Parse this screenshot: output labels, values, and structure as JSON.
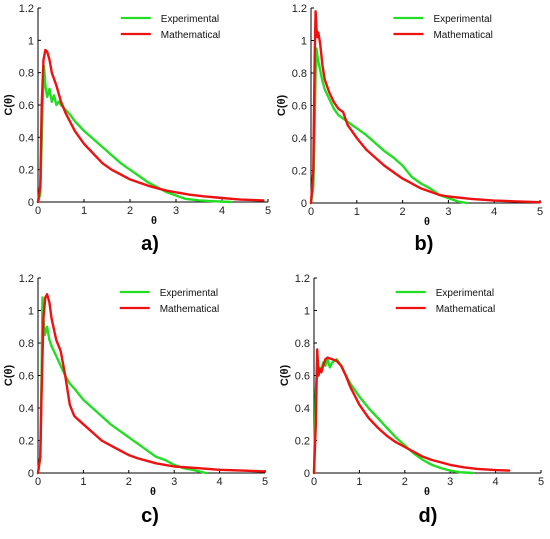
{
  "chart_data": [
    {
      "type": "line",
      "panel_label": "a)",
      "xlabel": "θ",
      "ylabel": "C(θ)",
      "xlim": [
        0,
        5
      ],
      "ylim": [
        0,
        1.2
      ],
      "xticks": [
        "0",
        "1",
        "2",
        "3",
        "4",
        "5"
      ],
      "yticks": [
        "0",
        "0.2",
        "0.4",
        "0.6",
        "0.8",
        "1",
        "1.2"
      ],
      "legend": "top-right",
      "series": [
        {
          "name": "Experimental",
          "color": "#22dd22",
          "x": [
            0,
            0.05,
            0.1,
            0.13,
            0.16,
            0.2,
            0.25,
            0.3,
            0.35,
            0.4,
            0.45,
            0.5,
            0.6,
            0.7,
            0.8,
            0.9,
            1.0,
            1.2,
            1.4,
            1.6,
            1.8,
            2.0,
            2.2,
            2.4,
            2.6,
            2.8,
            3.0,
            3.2,
            3.5,
            3.8,
            4.2
          ],
          "y": [
            0,
            0.05,
            0.6,
            0.84,
            0.72,
            0.65,
            0.7,
            0.62,
            0.66,
            0.6,
            0.62,
            0.6,
            0.57,
            0.54,
            0.5,
            0.47,
            0.44,
            0.39,
            0.34,
            0.29,
            0.24,
            0.2,
            0.16,
            0.12,
            0.09,
            0.06,
            0.04,
            0.02,
            0.01,
            0.005,
            0
          ]
        },
        {
          "name": "Mathematical",
          "color": "#ee1111",
          "x": [
            0,
            0.05,
            0.08,
            0.12,
            0.16,
            0.2,
            0.25,
            0.3,
            0.4,
            0.5,
            0.6,
            0.8,
            1.0,
            1.2,
            1.4,
            1.6,
            1.8,
            2.0,
            2.2,
            2.4,
            2.6,
            2.8,
            3.0,
            3.3,
            3.6,
            4.0,
            4.4,
            4.9
          ],
          "y": [
            0,
            0.1,
            0.6,
            0.88,
            0.94,
            0.93,
            0.88,
            0.8,
            0.72,
            0.62,
            0.55,
            0.44,
            0.36,
            0.3,
            0.24,
            0.2,
            0.17,
            0.14,
            0.12,
            0.1,
            0.085,
            0.07,
            0.06,
            0.045,
            0.035,
            0.025,
            0.015,
            0.01
          ]
        }
      ]
    },
    {
      "type": "line",
      "panel_label": "b)",
      "xlabel": "θ",
      "ylabel": "C(θ)",
      "xlim": [
        0,
        5
      ],
      "ylim": [
        0,
        1.2
      ],
      "xticks": [
        "0",
        "1",
        "2",
        "3",
        "4",
        "5"
      ],
      "yticks": [
        "0",
        "0.2",
        "0.4",
        "0.6",
        "0.8",
        "1",
        "1.2"
      ],
      "legend": "top-right",
      "series": [
        {
          "name": "Experimental",
          "color": "#22dd22",
          "x": [
            0,
            0.05,
            0.08,
            0.1,
            0.12,
            0.15,
            0.2,
            0.25,
            0.3,
            0.4,
            0.5,
            0.6,
            0.7,
            0.8,
            1.0,
            1.2,
            1.4,
            1.6,
            1.8,
            2.0,
            2.2,
            2.4,
            2.6,
            2.8,
            3.0,
            3.2,
            3.4
          ],
          "y": [
            0,
            0.1,
            0.5,
            0.8,
            0.95,
            0.88,
            0.82,
            0.75,
            0.7,
            0.64,
            0.58,
            0.54,
            0.52,
            0.5,
            0.46,
            0.42,
            0.37,
            0.32,
            0.28,
            0.23,
            0.16,
            0.12,
            0.09,
            0.05,
            0.03,
            0.01,
            0
          ]
        },
        {
          "name": "Mathematical",
          "color": "#ee1111",
          "x": [
            0,
            0.05,
            0.08,
            0.1,
            0.13,
            0.16,
            0.2,
            0.25,
            0.3,
            0.4,
            0.5,
            0.6,
            0.7,
            0.8,
            1.0,
            1.2,
            1.4,
            1.6,
            1.8,
            2.0,
            2.2,
            2.4,
            2.6,
            2.8,
            3.0,
            3.5,
            4.0,
            4.5,
            5.0
          ],
          "y": [
            0,
            0.2,
            0.9,
            1.18,
            1.02,
            1.05,
            0.98,
            0.85,
            0.76,
            0.68,
            0.62,
            0.58,
            0.56,
            0.48,
            0.4,
            0.33,
            0.28,
            0.23,
            0.19,
            0.15,
            0.12,
            0.09,
            0.07,
            0.05,
            0.04,
            0.025,
            0.015,
            0.01,
            0.005
          ]
        }
      ]
    },
    {
      "type": "line",
      "panel_label": "c)",
      "xlabel": "θ",
      "ylabel": "C(θ)",
      "xlim": [
        0,
        5
      ],
      "ylim": [
        0,
        1.2
      ],
      "xticks": [
        "0",
        "1",
        "2",
        "3",
        "4",
        "5"
      ],
      "yticks": [
        "0",
        "0.2",
        "0.4",
        "0.6",
        "0.8",
        "1",
        "1.2"
      ],
      "legend": "top-right",
      "series": [
        {
          "name": "Experimental",
          "color": "#22dd22",
          "x": [
            0,
            0.05,
            0.08,
            0.1,
            0.12,
            0.15,
            0.2,
            0.25,
            0.3,
            0.4,
            0.5,
            0.6,
            0.7,
            0.8,
            1.0,
            1.2,
            1.4,
            1.6,
            1.8,
            2.0,
            2.2,
            2.4,
            2.6,
            2.8,
            3.0,
            3.2,
            3.4,
            3.7
          ],
          "y": [
            0,
            0.1,
            0.6,
            1.08,
            0.95,
            0.85,
            0.9,
            0.82,
            0.78,
            0.72,
            0.66,
            0.6,
            0.55,
            0.52,
            0.45,
            0.4,
            0.35,
            0.3,
            0.26,
            0.22,
            0.18,
            0.14,
            0.1,
            0.08,
            0.05,
            0.03,
            0.02,
            0
          ]
        },
        {
          "name": "Mathematical",
          "color": "#ee1111",
          "x": [
            0,
            0.05,
            0.08,
            0.12,
            0.16,
            0.2,
            0.25,
            0.3,
            0.4,
            0.5,
            0.6,
            0.7,
            0.8,
            1.0,
            1.2,
            1.4,
            1.6,
            1.8,
            2.0,
            2.2,
            2.4,
            2.6,
            2.8,
            3.0,
            3.5,
            4.0,
            4.5,
            5.0
          ],
          "y": [
            0,
            0.1,
            0.5,
            0.95,
            1.08,
            1.1,
            1.05,
            0.95,
            0.82,
            0.75,
            0.6,
            0.42,
            0.35,
            0.3,
            0.25,
            0.2,
            0.17,
            0.14,
            0.11,
            0.09,
            0.075,
            0.06,
            0.05,
            0.04,
            0.03,
            0.02,
            0.015,
            0.01
          ]
        }
      ]
    },
    {
      "type": "line",
      "panel_label": "d)",
      "xlabel": "θ",
      "ylabel": "C(θ)",
      "xlim": [
        0,
        5
      ],
      "ylim": [
        0,
        1.2
      ],
      "xticks": [
        "0",
        "1",
        "2",
        "3",
        "4",
        "5"
      ],
      "yticks": [
        "0",
        "0.2",
        "0.4",
        "0.6",
        "0.8",
        "1",
        "1.2"
      ],
      "legend": "top-right",
      "series": [
        {
          "name": "Experimental",
          "color": "#22dd22",
          "x": [
            0,
            0.04,
            0.08,
            0.1,
            0.13,
            0.16,
            0.2,
            0.25,
            0.3,
            0.35,
            0.4,
            0.5,
            0.6,
            0.7,
            0.8,
            1.0,
            1.2,
            1.4,
            1.6,
            1.8,
            2.0,
            2.2,
            2.4,
            2.6,
            2.8,
            3.0,
            3.2,
            3.5
          ],
          "y": [
            0,
            0.5,
            0.7,
            0.6,
            0.65,
            0.62,
            0.68,
            0.66,
            0.7,
            0.65,
            0.68,
            0.7,
            0.66,
            0.6,
            0.55,
            0.47,
            0.4,
            0.34,
            0.28,
            0.22,
            0.17,
            0.12,
            0.08,
            0.05,
            0.03,
            0.015,
            0.005,
            0
          ]
        },
        {
          "name": "Mathematical",
          "color": "#ee1111",
          "x": [
            0,
            0.04,
            0.07,
            0.1,
            0.13,
            0.16,
            0.2,
            0.25,
            0.3,
            0.4,
            0.5,
            0.6,
            0.7,
            0.8,
            1.0,
            1.2,
            1.4,
            1.6,
            1.8,
            2.0,
            2.2,
            2.4,
            2.6,
            2.8,
            3.0,
            3.3,
            3.6,
            4.0,
            4.3
          ],
          "y": [
            0,
            0.3,
            0.76,
            0.6,
            0.64,
            0.62,
            0.66,
            0.7,
            0.71,
            0.7,
            0.69,
            0.66,
            0.6,
            0.53,
            0.42,
            0.34,
            0.28,
            0.23,
            0.19,
            0.16,
            0.13,
            0.1,
            0.08,
            0.065,
            0.05,
            0.035,
            0.025,
            0.018,
            0.015
          ]
        }
      ]
    }
  ]
}
